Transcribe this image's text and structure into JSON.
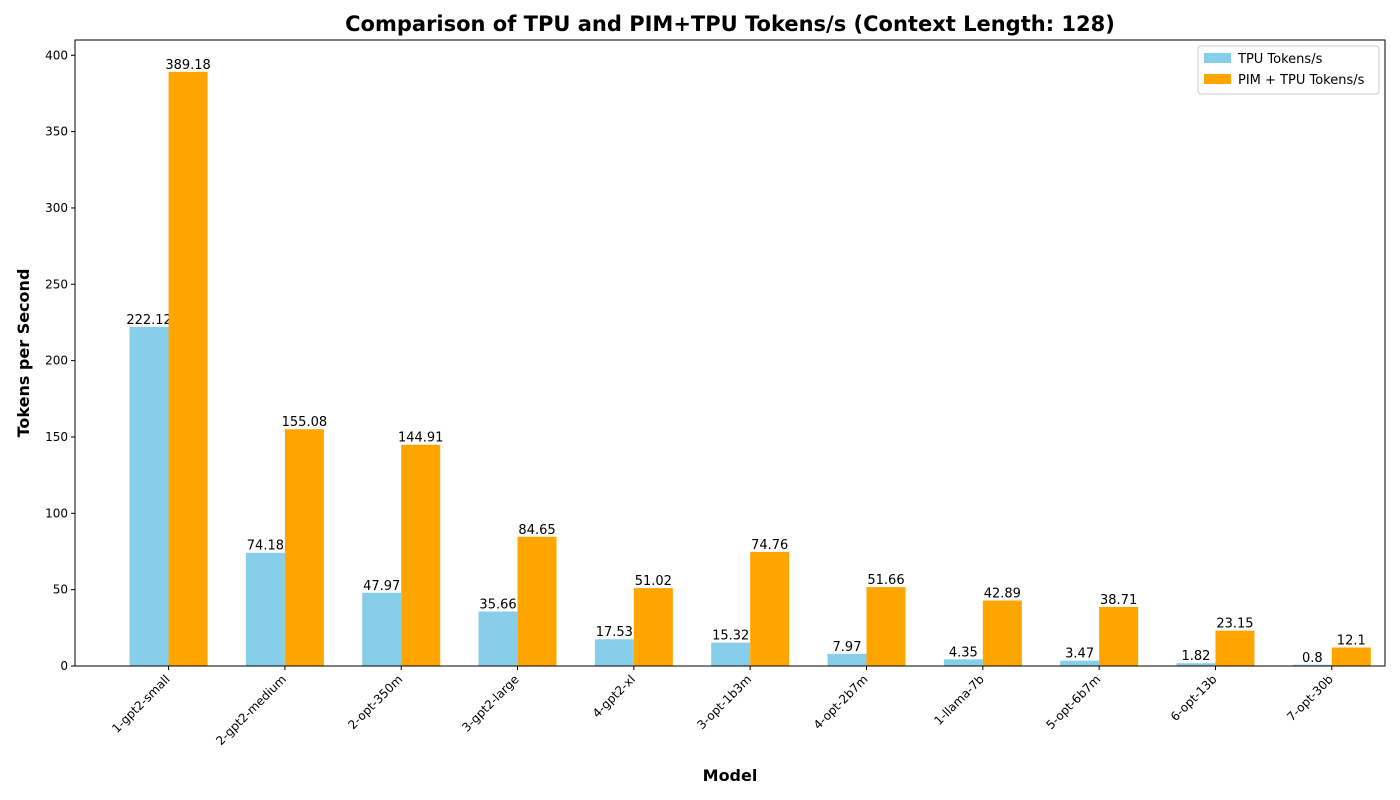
{
  "chart_data": {
    "type": "bar",
    "title": "Comparison of TPU and PIM+TPU Tokens/s (Context Length: 128)",
    "xlabel": "Model",
    "ylabel": "Tokens per Second",
    "ylim": [
      0,
      410
    ],
    "yticks": [
      0,
      50,
      100,
      150,
      200,
      250,
      300,
      350,
      400
    ],
    "grid": false,
    "legend_position": "top-right",
    "categories": [
      "1-gpt2-small",
      "2-gpt2-medium",
      "2-opt-350m",
      "3-gpt2-large",
      "4-gpt2-xl",
      "3-opt-1b3m",
      "4-opt-2b7m",
      "1-llama-7b",
      "5-opt-6b7m",
      "6-opt-13b",
      "7-opt-30b"
    ],
    "series": [
      {
        "name": "TPU Tokens/s",
        "color": "#87ceeb",
        "values": [
          222.12,
          74.18,
          47.97,
          35.66,
          17.53,
          15.32,
          7.97,
          4.35,
          3.47,
          1.82,
          0.8
        ],
        "labels": [
          "222.12",
          "74.18",
          "47.97",
          "35.66",
          "17.53",
          "15.32",
          "7.97",
          "4.35",
          "3.47",
          "1.82",
          "0.8"
        ]
      },
      {
        "name": "PIM + TPU Tokens/s",
        "color": "#ffa500",
        "values": [
          389.18,
          155.08,
          144.91,
          84.65,
          51.02,
          74.76,
          51.66,
          42.89,
          38.71,
          23.15,
          12.1
        ],
        "labels": [
          "389.18",
          "155.08",
          "144.91",
          "84.65",
          "51.02",
          "74.76",
          "51.66",
          "42.89",
          "38.71",
          "23.15",
          "12.1"
        ]
      }
    ]
  }
}
